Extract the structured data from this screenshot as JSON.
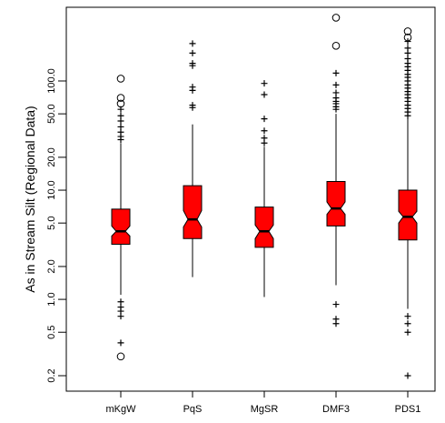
{
  "chart_data": {
    "type": "boxplot",
    "title": "",
    "xlabel": "",
    "ylabel": "As in Stream Silt (Regional Data)",
    "yscale": "log",
    "ylim": [
      0.17,
      420
    ],
    "yticks": [
      {
        "value": 0.2,
        "label": "0.2"
      },
      {
        "value": 0.5,
        "label": "0.5"
      },
      {
        "value": 1.0,
        "label": "1.0"
      },
      {
        "value": 2.0,
        "label": "2.0"
      },
      {
        "value": 5.0,
        "label": "5.0"
      },
      {
        "value": 10.0,
        "label": "10.0"
      },
      {
        "value": 20.0,
        "label": "20.0"
      },
      {
        "value": 50.0,
        "label": "50.0"
      },
      {
        "value": 100.0,
        "label": "100.0"
      }
    ],
    "box_color": "#ff0000",
    "categories": [
      "mKgW",
      "PqS",
      "MgSR",
      "DMF3",
      "PDS1"
    ],
    "boxes": [
      {
        "name": "mKgW",
        "whisker_low": 1.1,
        "q1": 3.2,
        "median": 4.2,
        "q3": 6.7,
        "whisker_high": 27,
        "notch_low": 3.8,
        "notch_high": 4.7,
        "outliers_plus": [
          0.4,
          0.7,
          0.78,
          0.85,
          0.95,
          29,
          31,
          34,
          38,
          43,
          48,
          55
        ],
        "outliers_circle": [
          0.3,
          62,
          70,
          105
        ]
      },
      {
        "name": "PqS",
        "whisker_low": 1.6,
        "q1": 3.6,
        "median": 5.4,
        "q3": 11,
        "whisker_high": 40,
        "notch_low": 4.6,
        "notch_high": 6.5,
        "outliers_plus": [
          57,
          60,
          82,
          88,
          138,
          145,
          180,
          220
        ],
        "outliers_circle": []
      },
      {
        "name": "MgSR",
        "whisker_low": 1.05,
        "q1": 3.0,
        "median": 4.2,
        "q3": 7.0,
        "whisker_high": 25,
        "notch_low": 3.6,
        "notch_high": 4.8,
        "outliers_plus": [
          27,
          30,
          35,
          45,
          75,
          95
        ],
        "outliers_circle": []
      },
      {
        "name": "DMF3",
        "whisker_low": 1.35,
        "q1": 4.7,
        "median": 6.8,
        "q3": 12,
        "whisker_high": 50,
        "notch_low": 6.0,
        "notch_high": 7.8,
        "outliers_plus": [
          0.6,
          0.66,
          0.9,
          55,
          58,
          62,
          65,
          70,
          78,
          92,
          118
        ],
        "outliers_circle": [
          210,
          380
        ]
      },
      {
        "name": "PDS1",
        "whisker_low": 0.82,
        "q1": 3.5,
        "median": 5.7,
        "q3": 10,
        "whisker_high": 46,
        "notch_low": 5.0,
        "notch_high": 6.4,
        "outliers_plus": [
          0.2,
          0.5,
          0.6,
          0.7,
          48,
          52,
          56,
          60,
          65,
          70,
          75,
          80,
          86,
          92,
          100,
          108,
          115,
          125,
          135,
          145,
          160,
          180,
          200,
          230
        ],
        "outliers_circle": [
          250,
          285
        ]
      }
    ]
  }
}
